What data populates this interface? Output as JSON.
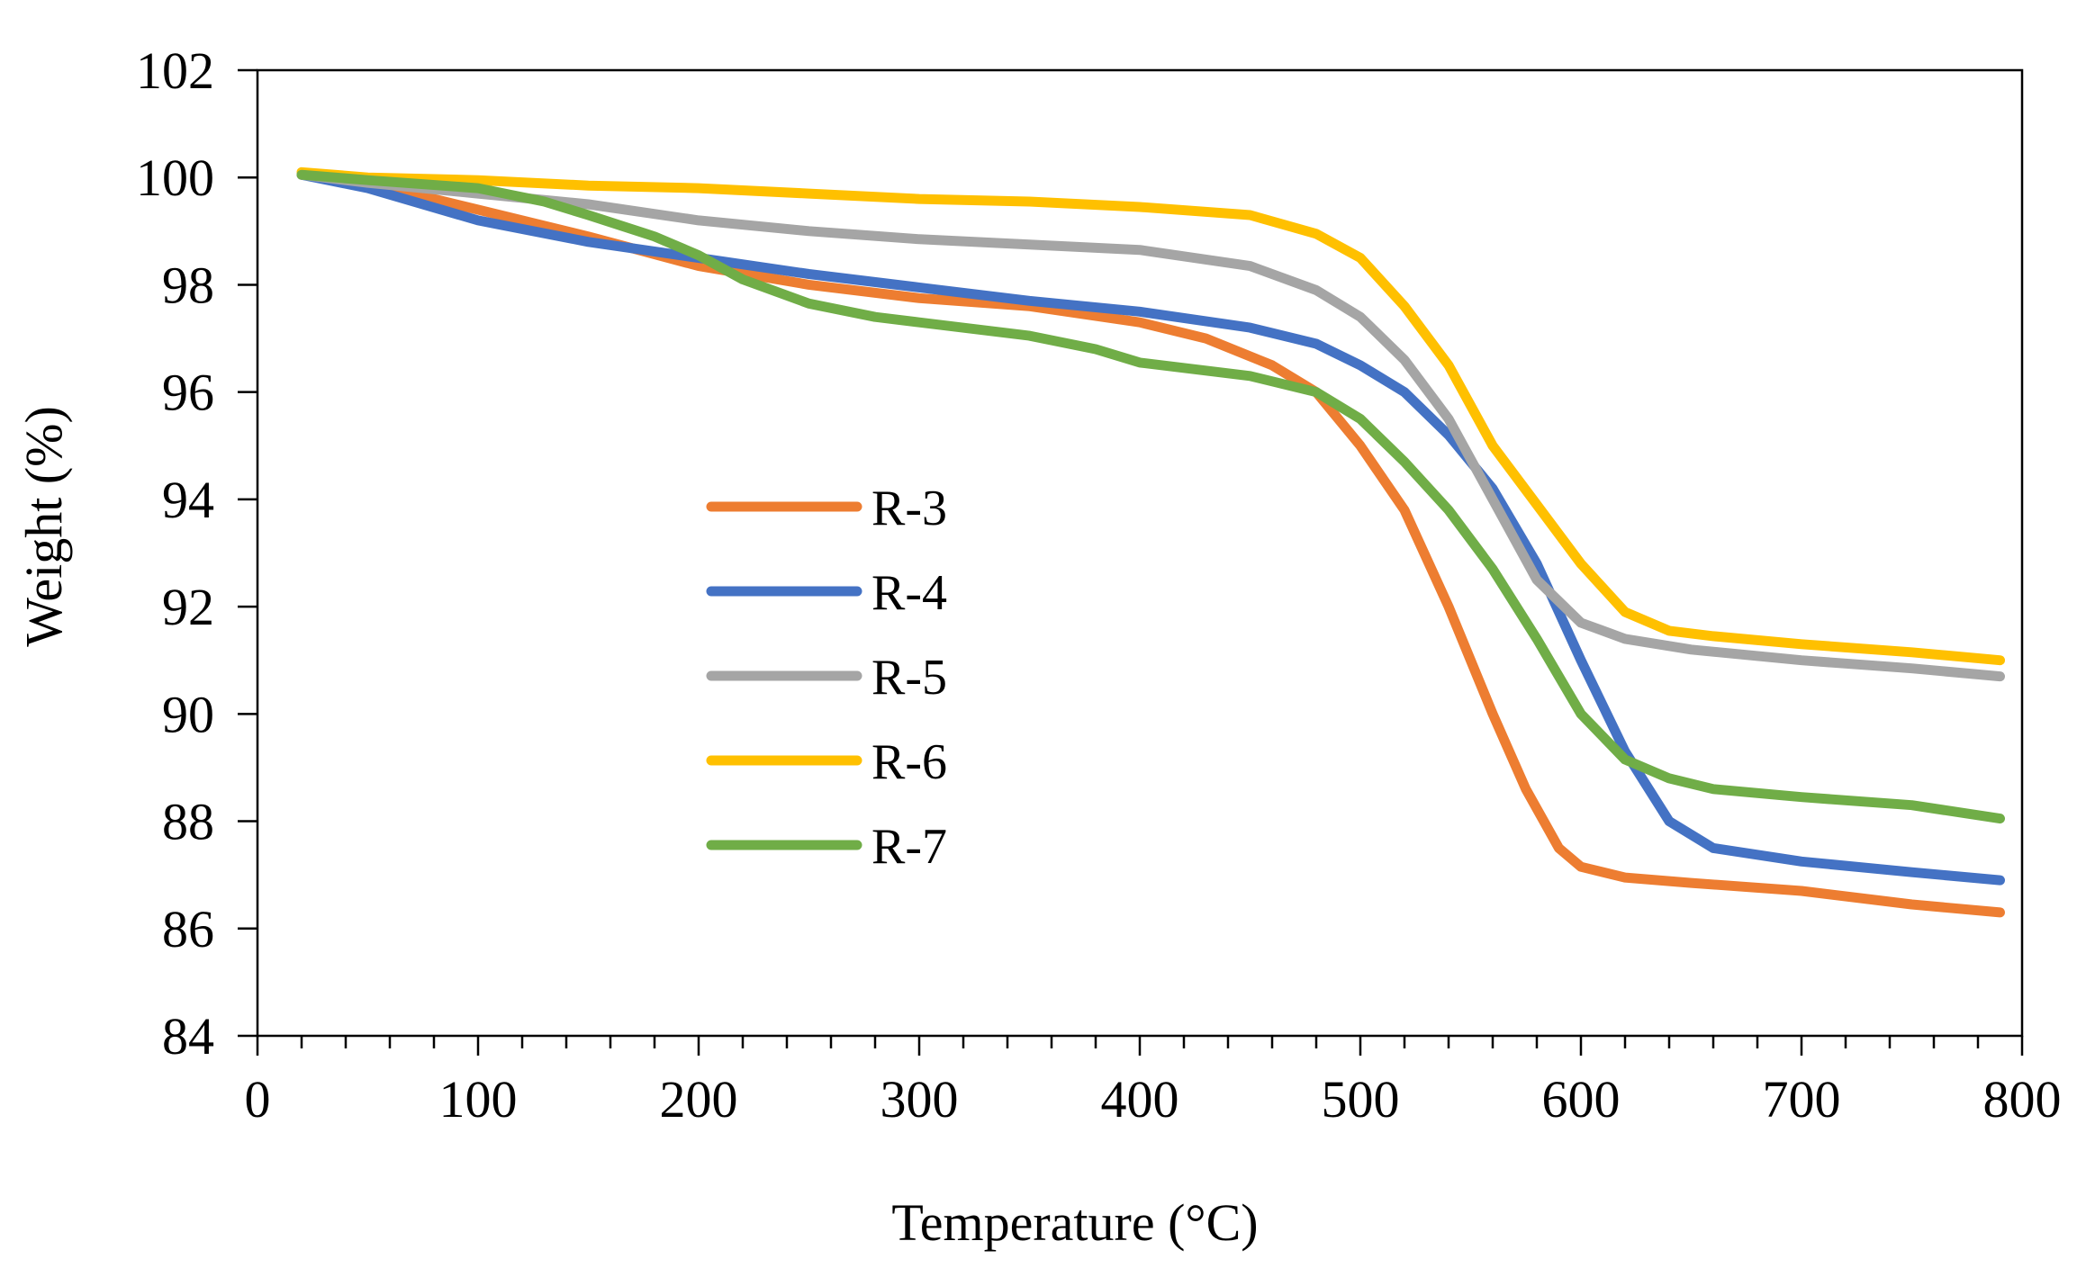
{
  "chart_data": {
    "type": "line",
    "title": "",
    "xlabel": "Temperature (°C)",
    "ylabel": "Weight (%)",
    "xlim": [
      0,
      800
    ],
    "ylim": [
      84,
      102
    ],
    "xticks": [
      0,
      100,
      200,
      300,
      400,
      500,
      600,
      700,
      800
    ],
    "xtick_labels": [
      "0",
      "100",
      "200",
      "300",
      "400",
      "500",
      "600",
      "700",
      "800"
    ],
    "yticks": [
      84,
      86,
      88,
      90,
      92,
      94,
      96,
      98,
      100,
      102
    ],
    "ytick_labels": [
      "84",
      "86",
      "88",
      "90",
      "92",
      "94",
      "96",
      "98",
      "100",
      "102"
    ],
    "x_minor_tick_step": 20,
    "grid": false,
    "legend_position": "center-left",
    "series": [
      {
        "name": "R-3",
        "color": "#ED7D31",
        "points": [
          [
            20,
            100.05
          ],
          [
            50,
            99.9
          ],
          [
            100,
            99.4
          ],
          [
            150,
            98.9
          ],
          [
            200,
            98.35
          ],
          [
            250,
            98.0
          ],
          [
            300,
            97.75
          ],
          [
            350,
            97.6
          ],
          [
            400,
            97.3
          ],
          [
            430,
            97.0
          ],
          [
            460,
            96.5
          ],
          [
            480,
            96.0
          ],
          [
            500,
            95.0
          ],
          [
            520,
            93.8
          ],
          [
            540,
            92.0
          ],
          [
            560,
            90.0
          ],
          [
            575,
            88.6
          ],
          [
            590,
            87.5
          ],
          [
            600,
            87.15
          ],
          [
            620,
            86.95
          ],
          [
            650,
            86.85
          ],
          [
            700,
            86.7
          ],
          [
            750,
            86.45
          ],
          [
            790,
            86.3
          ]
        ]
      },
      {
        "name": "R-4",
        "color": "#4472C4",
        "points": [
          [
            20,
            100.05
          ],
          [
            50,
            99.8
          ],
          [
            100,
            99.2
          ],
          [
            150,
            98.8
          ],
          [
            200,
            98.5
          ],
          [
            250,
            98.2
          ],
          [
            300,
            97.95
          ],
          [
            350,
            97.7
          ],
          [
            400,
            97.5
          ],
          [
            450,
            97.2
          ],
          [
            480,
            96.9
          ],
          [
            500,
            96.5
          ],
          [
            520,
            96.0
          ],
          [
            540,
            95.2
          ],
          [
            560,
            94.2
          ],
          [
            580,
            92.8
          ],
          [
            600,
            91.0
          ],
          [
            620,
            89.3
          ],
          [
            640,
            88.0
          ],
          [
            660,
            87.5
          ],
          [
            700,
            87.25
          ],
          [
            750,
            87.05
          ],
          [
            790,
            86.9
          ]
        ]
      },
      {
        "name": "R-5",
        "color": "#A5A5A5",
        "points": [
          [
            20,
            100.05
          ],
          [
            50,
            99.9
          ],
          [
            100,
            99.7
          ],
          [
            150,
            99.5
          ],
          [
            200,
            99.2
          ],
          [
            250,
            99.0
          ],
          [
            300,
            98.85
          ],
          [
            350,
            98.75
          ],
          [
            400,
            98.65
          ],
          [
            450,
            98.35
          ],
          [
            480,
            97.9
          ],
          [
            500,
            97.4
          ],
          [
            520,
            96.6
          ],
          [
            540,
            95.5
          ],
          [
            560,
            94.0
          ],
          [
            580,
            92.5
          ],
          [
            600,
            91.7
          ],
          [
            620,
            91.4
          ],
          [
            650,
            91.2
          ],
          [
            700,
            91.0
          ],
          [
            750,
            90.85
          ],
          [
            790,
            90.7
          ]
        ]
      },
      {
        "name": "R-6",
        "color": "#FFC000",
        "points": [
          [
            20,
            100.1
          ],
          [
            50,
            100.0
          ],
          [
            100,
            99.95
          ],
          [
            150,
            99.85
          ],
          [
            200,
            99.8
          ],
          [
            250,
            99.7
          ],
          [
            300,
            99.6
          ],
          [
            350,
            99.55
          ],
          [
            400,
            99.45
          ],
          [
            450,
            99.3
          ],
          [
            480,
            98.95
          ],
          [
            500,
            98.5
          ],
          [
            520,
            97.6
          ],
          [
            540,
            96.5
          ],
          [
            560,
            95.0
          ],
          [
            580,
            93.9
          ],
          [
            600,
            92.8
          ],
          [
            620,
            91.9
          ],
          [
            640,
            91.55
          ],
          [
            660,
            91.45
          ],
          [
            700,
            91.3
          ],
          [
            750,
            91.15
          ],
          [
            790,
            91.0
          ]
        ]
      },
      {
        "name": "R-7",
        "color": "#70AD47",
        "points": [
          [
            20,
            100.05
          ],
          [
            50,
            99.95
          ],
          [
            100,
            99.8
          ],
          [
            130,
            99.55
          ],
          [
            150,
            99.3
          ],
          [
            180,
            98.9
          ],
          [
            200,
            98.55
          ],
          [
            220,
            98.1
          ],
          [
            250,
            97.65
          ],
          [
            280,
            97.4
          ],
          [
            300,
            97.3
          ],
          [
            350,
            97.05
          ],
          [
            380,
            96.8
          ],
          [
            400,
            96.55
          ],
          [
            450,
            96.3
          ],
          [
            480,
            96.0
          ],
          [
            500,
            95.5
          ],
          [
            520,
            94.7
          ],
          [
            540,
            93.8
          ],
          [
            560,
            92.7
          ],
          [
            580,
            91.4
          ],
          [
            600,
            90.0
          ],
          [
            620,
            89.15
          ],
          [
            640,
            88.8
          ],
          [
            660,
            88.6
          ],
          [
            700,
            88.45
          ],
          [
            750,
            88.3
          ],
          [
            790,
            88.05
          ]
        ]
      }
    ]
  }
}
